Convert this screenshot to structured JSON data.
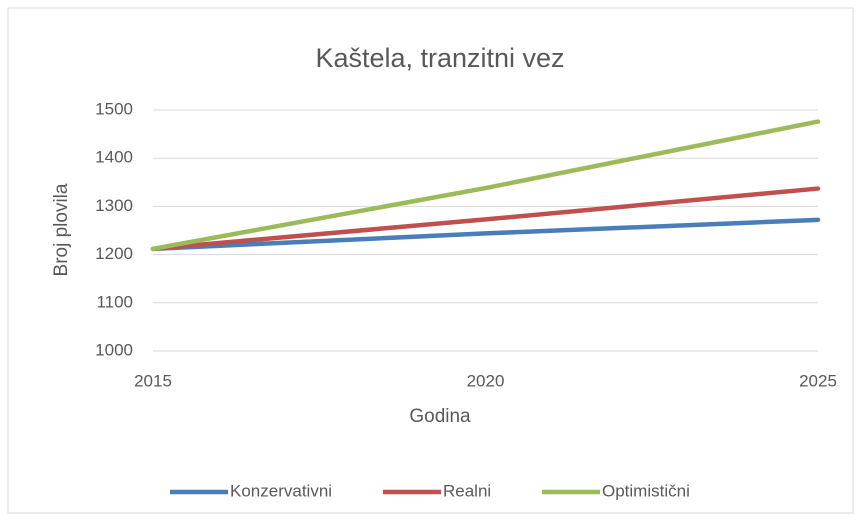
{
  "chart_data": {
    "type": "line",
    "title": "Kaštela, tranzitni vez",
    "x_label": "Godina",
    "y_label": "Broj plovila",
    "x": [
      2015,
      2020,
      2025
    ],
    "series": [
      {
        "name": "Konzervativni",
        "color": "#4a7ebb",
        "values": [
          1212,
          1244,
          1272
        ]
      },
      {
        "name": "Realni",
        "color": "#c0504d",
        "values": [
          1212,
          1273,
          1337
        ]
      },
      {
        "name": "Optimistični",
        "color": "#9bbb59",
        "values": [
          1212,
          1338,
          1476
        ]
      }
    ],
    "xlim": [
      2015,
      2025
    ],
    "xticks": [
      2015,
      2020,
      2025
    ],
    "ylim": [
      1000,
      1500
    ],
    "yticks": [
      1000,
      1100,
      1200,
      1300,
      1400,
      1500
    ],
    "grid": true,
    "legend": "bottom"
  }
}
